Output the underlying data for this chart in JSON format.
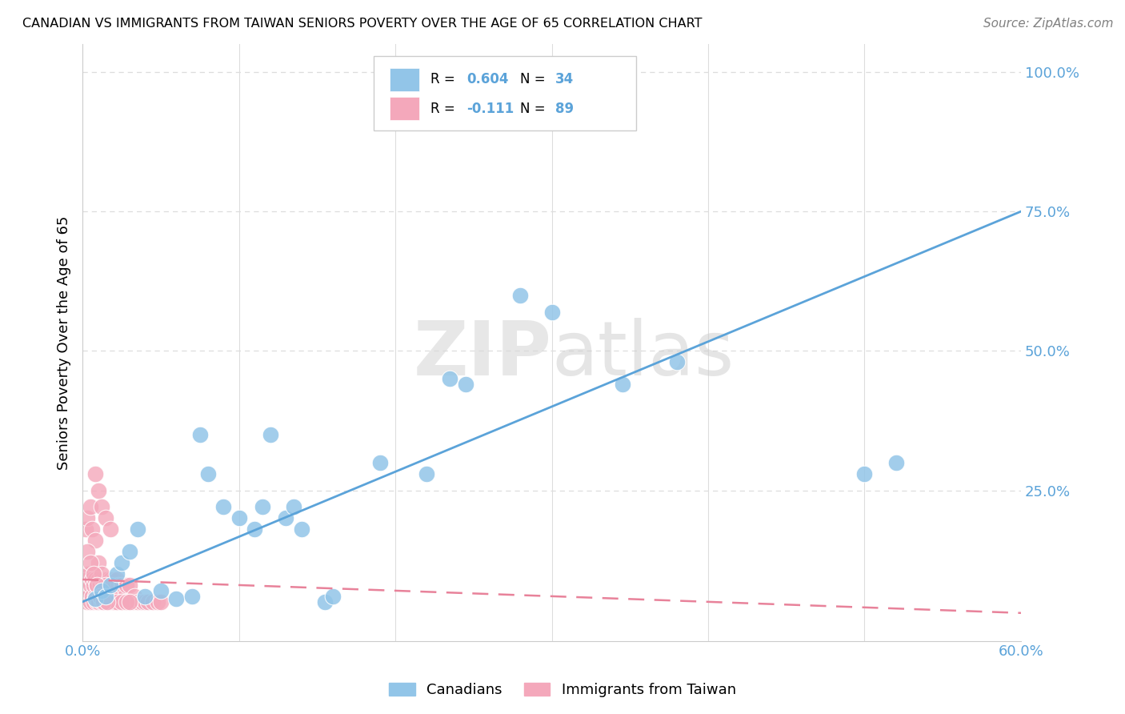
{
  "title": "CANADIAN VS IMMIGRANTS FROM TAIWAN SENIORS POVERTY OVER THE AGE OF 65 CORRELATION CHART",
  "source": "Source: ZipAtlas.com",
  "ylabel": "Seniors Poverty Over the Age of 65",
  "xlim": [
    0.0,
    0.6
  ],
  "ylim": [
    -0.02,
    1.05
  ],
  "right_yticks": [
    1.0,
    0.75,
    0.5,
    0.25
  ],
  "right_yticklabels": [
    "100.0%",
    "75.0%",
    "50.0%",
    "25.0%"
  ],
  "canadians_R": 0.604,
  "canadians_N": 34,
  "taiwan_R": -0.111,
  "taiwan_N": 89,
  "blue_color": "#92C5E8",
  "pink_color": "#F4A8BB",
  "blue_line_color": "#5BA3D9",
  "pink_line_color": "#E8829A",
  "canadians_x": [
    0.008,
    0.012,
    0.015,
    0.018,
    0.022,
    0.025,
    0.03,
    0.035,
    0.04,
    0.05,
    0.06,
    0.07,
    0.075,
    0.08,
    0.09,
    0.1,
    0.11,
    0.115,
    0.12,
    0.13,
    0.135,
    0.14,
    0.155,
    0.16,
    0.19,
    0.22,
    0.235,
    0.245,
    0.28,
    0.3,
    0.345,
    0.38,
    0.5,
    0.52
  ],
  "canadians_y": [
    0.055,
    0.07,
    0.06,
    0.08,
    0.1,
    0.12,
    0.14,
    0.18,
    0.06,
    0.07,
    0.055,
    0.06,
    0.35,
    0.28,
    0.22,
    0.2,
    0.18,
    0.22,
    0.35,
    0.2,
    0.22,
    0.18,
    0.05,
    0.06,
    0.3,
    0.28,
    0.45,
    0.44,
    0.6,
    0.57,
    0.44,
    0.48,
    0.28,
    0.3
  ],
  "taiwan_x": [
    0.001,
    0.002,
    0.002,
    0.003,
    0.003,
    0.004,
    0.004,
    0.005,
    0.005,
    0.006,
    0.006,
    0.007,
    0.007,
    0.008,
    0.008,
    0.009,
    0.009,
    0.01,
    0.01,
    0.011,
    0.011,
    0.012,
    0.012,
    0.013,
    0.013,
    0.014,
    0.014,
    0.015,
    0.015,
    0.016,
    0.016,
    0.017,
    0.017,
    0.018,
    0.018,
    0.019,
    0.019,
    0.02,
    0.02,
    0.021,
    0.021,
    0.022,
    0.022,
    0.023,
    0.023,
    0.024,
    0.025,
    0.025,
    0.026,
    0.027,
    0.028,
    0.028,
    0.03,
    0.03,
    0.032,
    0.033,
    0.035,
    0.038,
    0.04,
    0.042,
    0.045,
    0.048,
    0.05,
    0.002,
    0.003,
    0.005,
    0.006,
    0.008,
    0.01,
    0.012,
    0.015,
    0.018,
    0.02,
    0.022,
    0.025,
    0.028,
    0.03,
    0.008,
    0.01,
    0.012,
    0.015,
    0.018,
    0.003,
    0.005,
    0.007,
    0.009,
    0.011,
    0.013,
    0.016
  ],
  "taiwan_y": [
    0.08,
    0.06,
    0.1,
    0.05,
    0.09,
    0.06,
    0.1,
    0.05,
    0.08,
    0.06,
    0.09,
    0.05,
    0.08,
    0.06,
    0.09,
    0.05,
    0.08,
    0.05,
    0.09,
    0.06,
    0.08,
    0.05,
    0.09,
    0.06,
    0.08,
    0.05,
    0.09,
    0.06,
    0.08,
    0.05,
    0.09,
    0.06,
    0.08,
    0.05,
    0.09,
    0.06,
    0.08,
    0.05,
    0.09,
    0.06,
    0.08,
    0.05,
    0.09,
    0.06,
    0.08,
    0.05,
    0.06,
    0.08,
    0.05,
    0.06,
    0.05,
    0.08,
    0.05,
    0.08,
    0.05,
    0.06,
    0.05,
    0.05,
    0.05,
    0.05,
    0.05,
    0.05,
    0.05,
    0.18,
    0.2,
    0.22,
    0.18,
    0.16,
    0.12,
    0.1,
    0.08,
    0.06,
    0.05,
    0.05,
    0.05,
    0.05,
    0.05,
    0.28,
    0.25,
    0.22,
    0.2,
    0.18,
    0.14,
    0.12,
    0.1,
    0.08,
    0.06,
    0.05,
    0.05
  ],
  "watermark_zip": "ZIP",
  "watermark_atlas": "atlas",
  "background_color": "#FFFFFF",
  "grid_color": "#DDDDDD",
  "title_fontsize": 11.5,
  "axis_label_color": "#5BA3D9",
  "tick_label_fontsize": 13
}
